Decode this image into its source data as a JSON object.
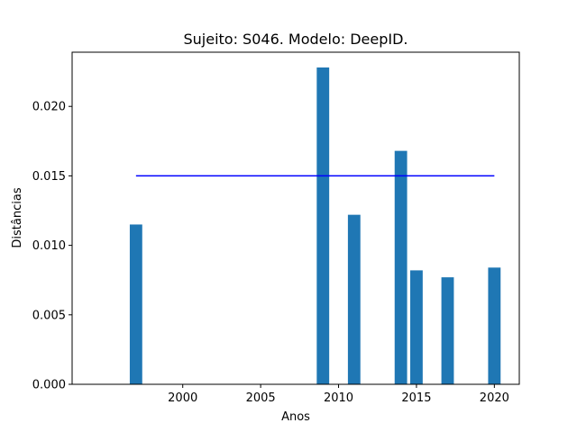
{
  "chart_data": {
    "type": "bar",
    "title": "Sujeito: S046. Modelo: DeepID.",
    "xlabel": "Anos",
    "ylabel": "Distâncias",
    "x": [
      1997,
      2009,
      2011,
      2014,
      2015,
      2017,
      2020
    ],
    "values": [
      0.0115,
      0.0228,
      0.0122,
      0.0168,
      0.0082,
      0.0077,
      0.0084
    ],
    "bar_color": "#1f77b4",
    "threshold": {
      "value": 0.015,
      "x_range": [
        1997,
        2020
      ],
      "color": "#0000ff"
    },
    "xlim": [
      1992.9,
      2021.6
    ],
    "ylim": [
      0,
      0.0239
    ],
    "xticks": [
      2000,
      2005,
      2010,
      2015,
      2020
    ],
    "xtick_labels": [
      "2000",
      "2005",
      "2010",
      "2015",
      "2020"
    ],
    "yticks": [
      0,
      0.005,
      0.01,
      0.015,
      0.02
    ],
    "ytick_labels": [
      "0.000",
      "0.005",
      "0.010",
      "0.015",
      "0.020"
    ],
    "bar_width_years": 0.8,
    "grid": false,
    "legend": "none"
  }
}
